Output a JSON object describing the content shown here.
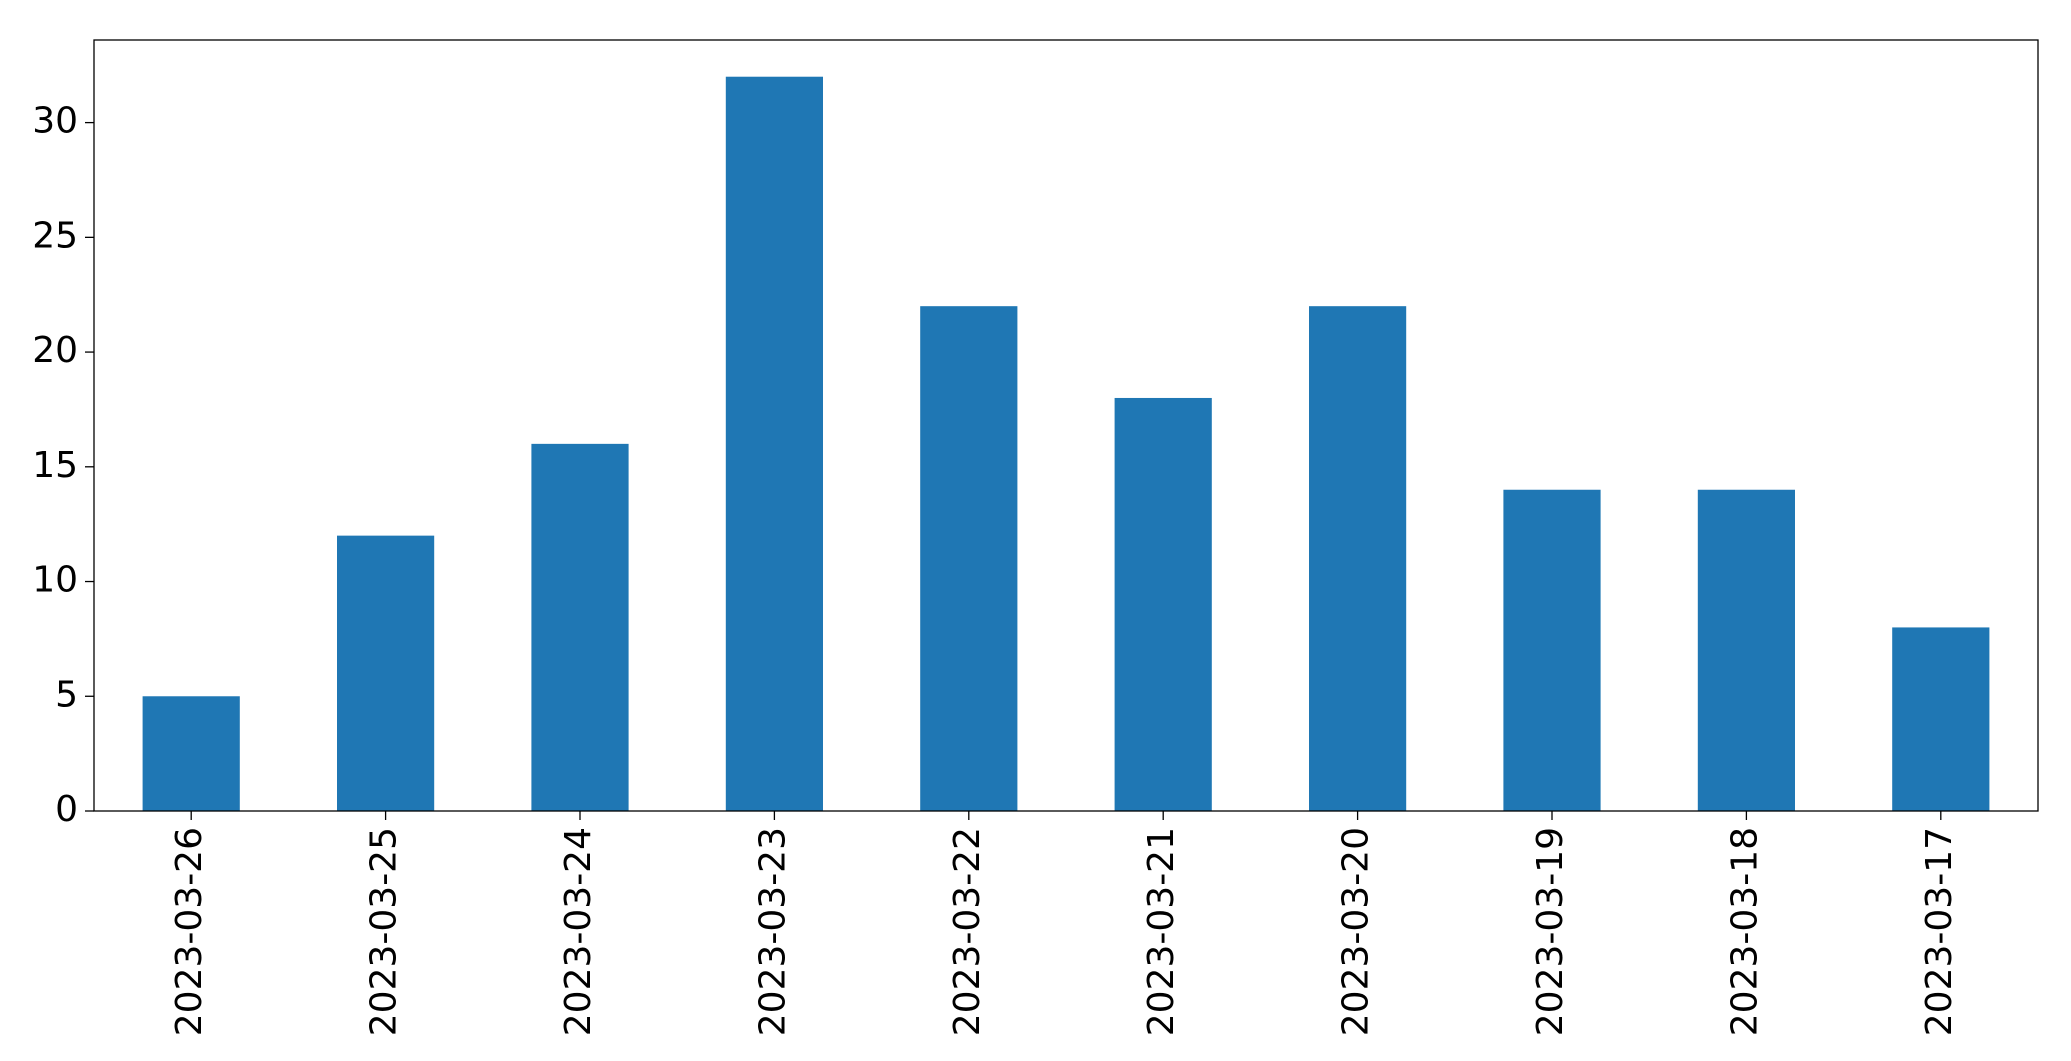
{
  "chart_data": {
    "type": "bar",
    "categories": [
      "2023-03-26",
      "2023-03-25",
      "2023-03-24",
      "2023-03-23",
      "2023-03-22",
      "2023-03-21",
      "2023-03-20",
      "2023-03-19",
      "2023-03-18",
      "2023-03-17"
    ],
    "values": [
      5,
      12,
      16,
      32,
      22,
      18,
      22,
      14,
      14,
      8
    ],
    "color": "#1f77b4",
    "ylim": [
      0,
      33.6
    ],
    "yticks": [
      0,
      5,
      10,
      15,
      20,
      25,
      30
    ],
    "grid": false
  }
}
